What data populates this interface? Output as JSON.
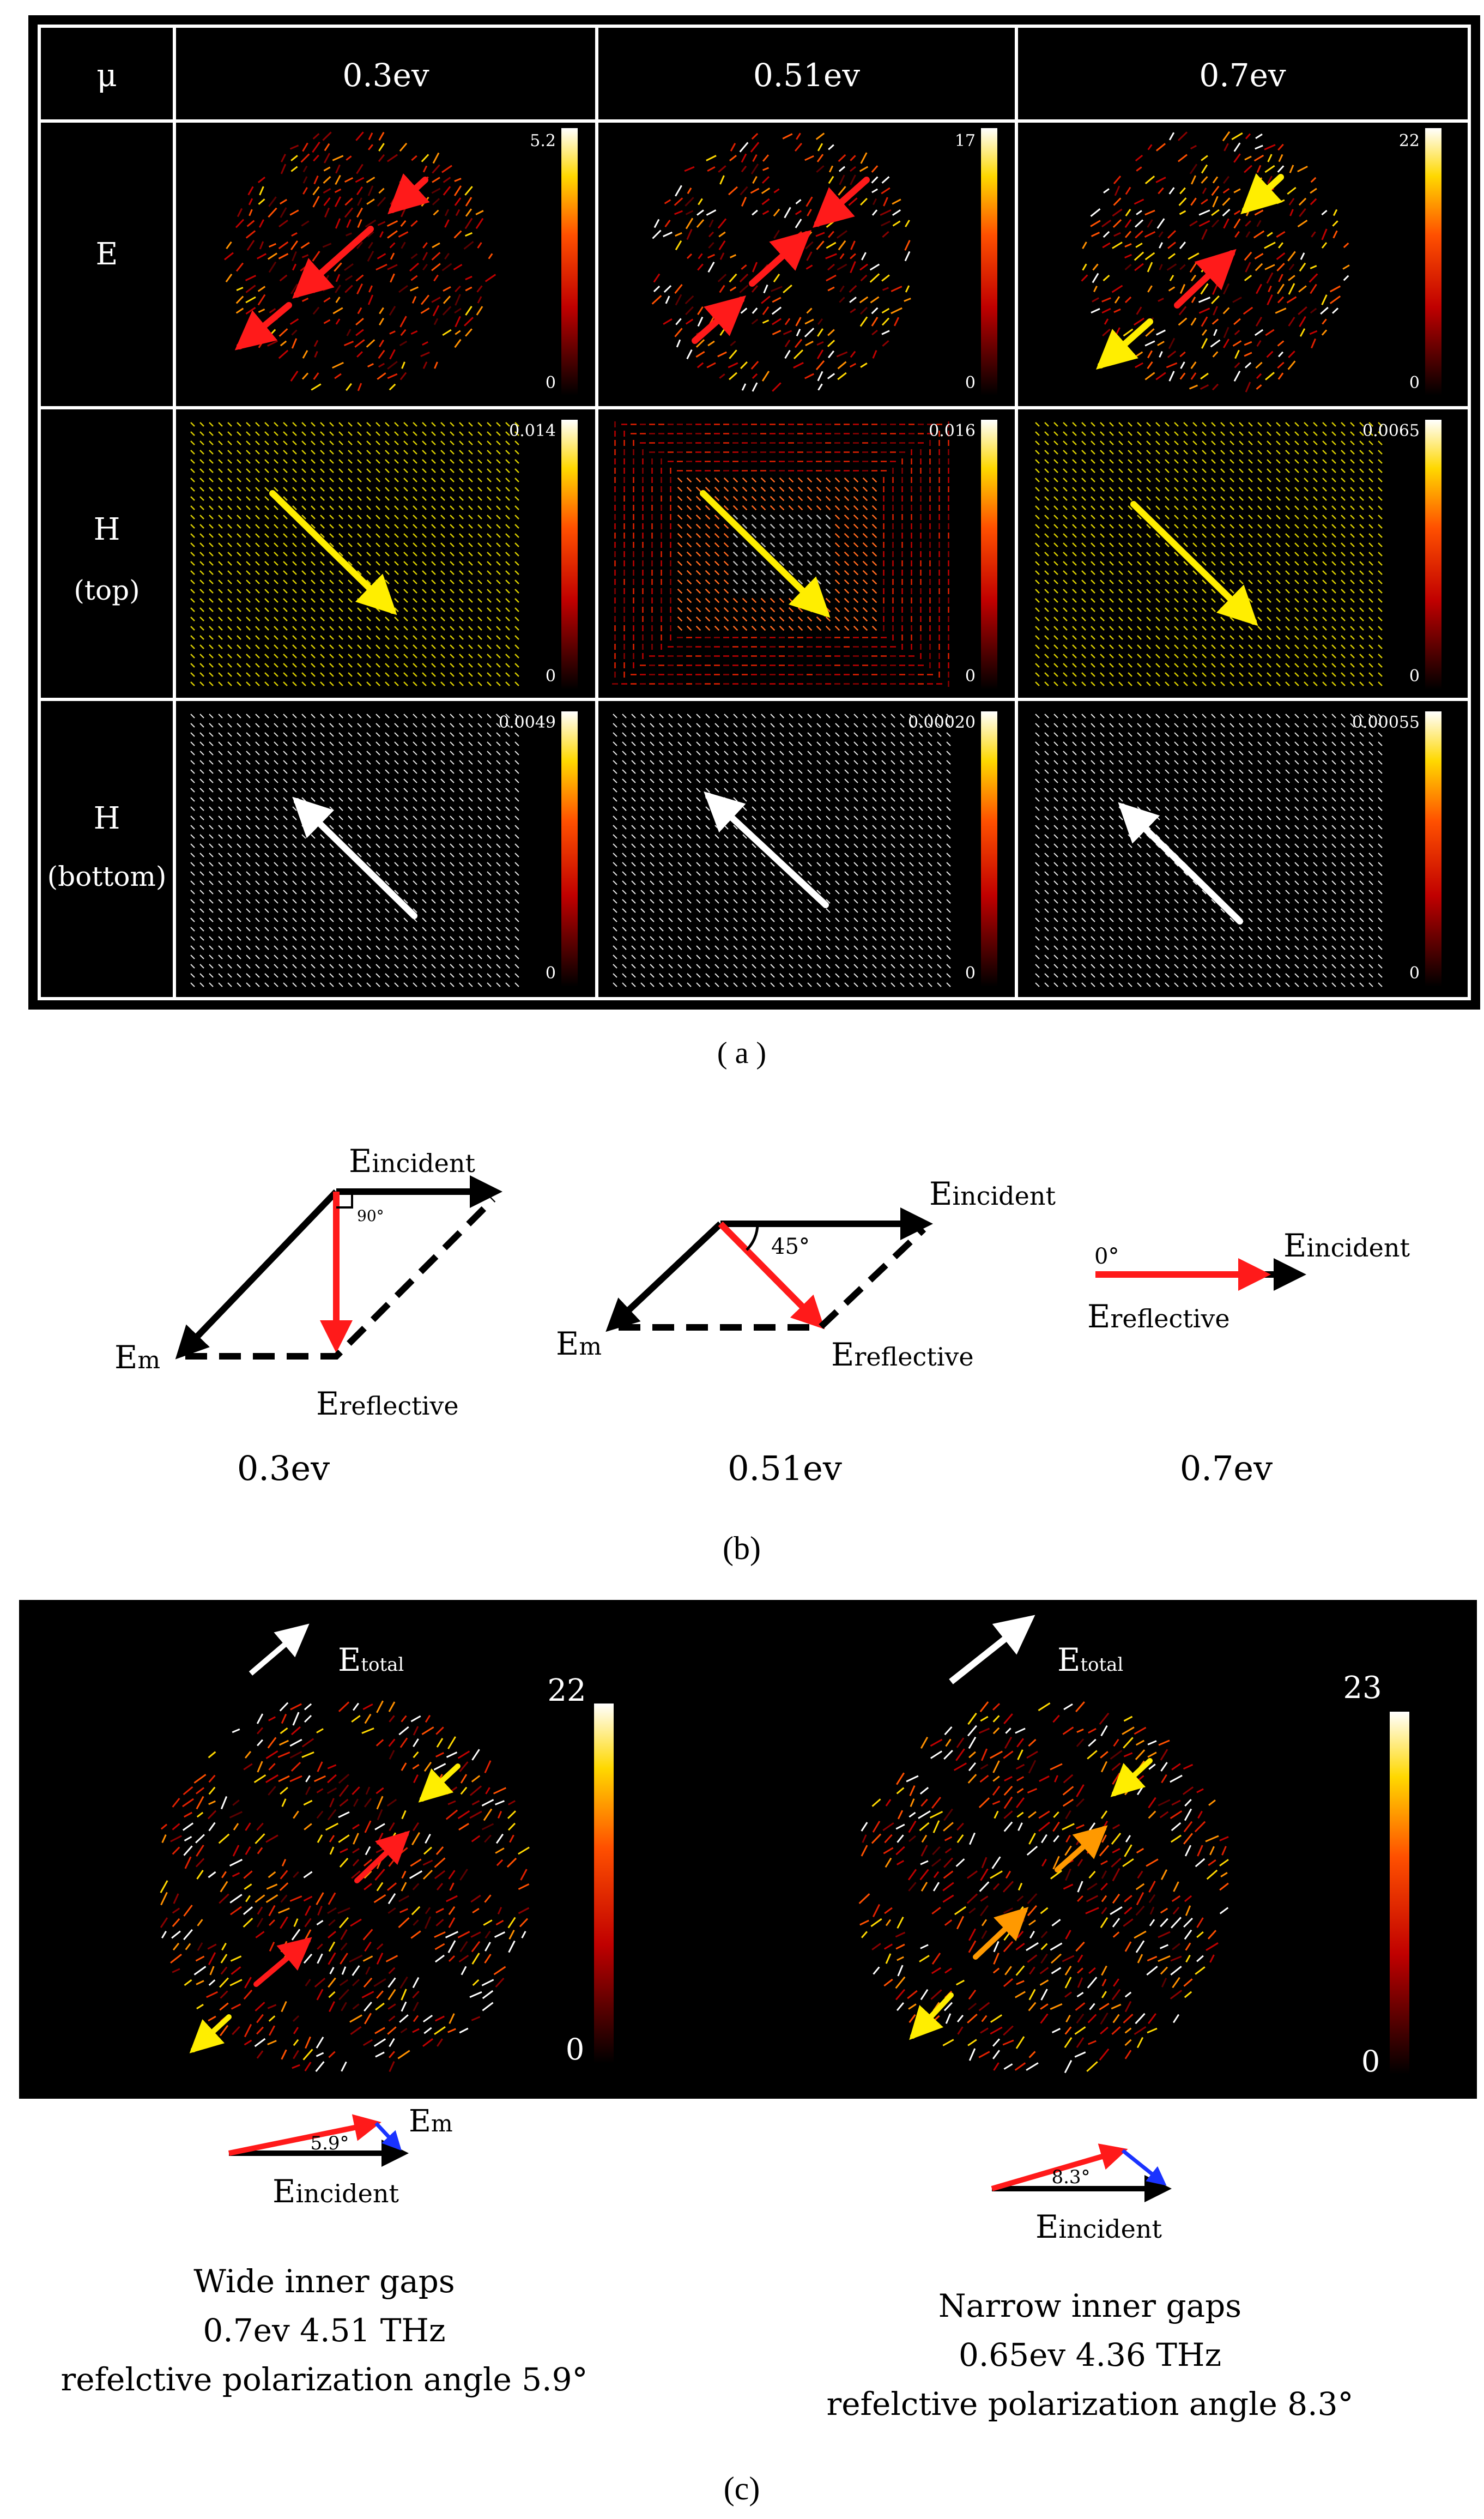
{
  "panel_a": {
    "caption": "( a )",
    "header": {
      "param_symbol": "μ",
      "columns": [
        "0.3ev",
        "0.51ev",
        "0.7ev"
      ]
    },
    "rows": [
      {
        "label_lines": [
          "E"
        ],
        "colorbar_max": [
          "5.2",
          "17",
          "22"
        ],
        "colorbar_min": "0"
      },
      {
        "label_lines": [
          "H",
          "(top)"
        ],
        "colorbar_max": [
          "0.014",
          "0.016",
          "0.0065"
        ],
        "colorbar_min": "0"
      },
      {
        "label_lines": [
          "H",
          "(bottom)"
        ],
        "colorbar_max": [
          "0.0049",
          "0.00020",
          "0.00055"
        ],
        "colorbar_min": "0"
      }
    ]
  },
  "panel_b": {
    "caption": "(b)",
    "diagrams": [
      {
        "energy": "0.3ev",
        "angle_label": "90°",
        "incident_main": "E",
        "incident_sub": "incident",
        "m_main": "E",
        "m_sub": "m",
        "reflective_main": "E",
        "reflective_sub": "reflective"
      },
      {
        "energy": "0.51ev",
        "angle_label": "45°",
        "incident_main": "E",
        "incident_sub": "incident",
        "m_main": "E",
        "m_sub": "m",
        "reflective_main": "E",
        "reflective_sub": "reflective"
      },
      {
        "energy": "0.7ev",
        "angle_label": "0°",
        "incident_main": "E",
        "incident_sub": "incident",
        "reflective_main": "E",
        "reflective_sub": "reflective"
      }
    ]
  },
  "panel_c": {
    "caption": "(c)",
    "plots": [
      {
        "total_main": "E",
        "total_sub": "total",
        "colorbar_max": "22",
        "colorbar_min": "0",
        "angle_label": "5.9°",
        "m_main": "E",
        "m_sub": "m",
        "incident_main": "E",
        "incident_sub": "incident",
        "caption_lines": [
          "Wide inner gaps",
          "0.7ev   4.51 THz",
          "refelctive polarization angle 5.9°"
        ]
      },
      {
        "total_main": "E",
        "total_sub": "total",
        "colorbar_max": "23",
        "colorbar_min": "0",
        "angle_label": "8.3°",
        "incident_main": "E",
        "incident_sub": "incident",
        "caption_lines": [
          "Narrow inner gaps",
          "0.65ev   4.36 THz",
          "refelctive polarization angle 8.3°"
        ]
      }
    ]
  },
  "colors": {
    "red": "#ff1a1a",
    "yellow": "#ffee00",
    "orange": "#ff9900",
    "white": "#ffffff",
    "blue": "#1a33ff",
    "black": "#000000"
  }
}
